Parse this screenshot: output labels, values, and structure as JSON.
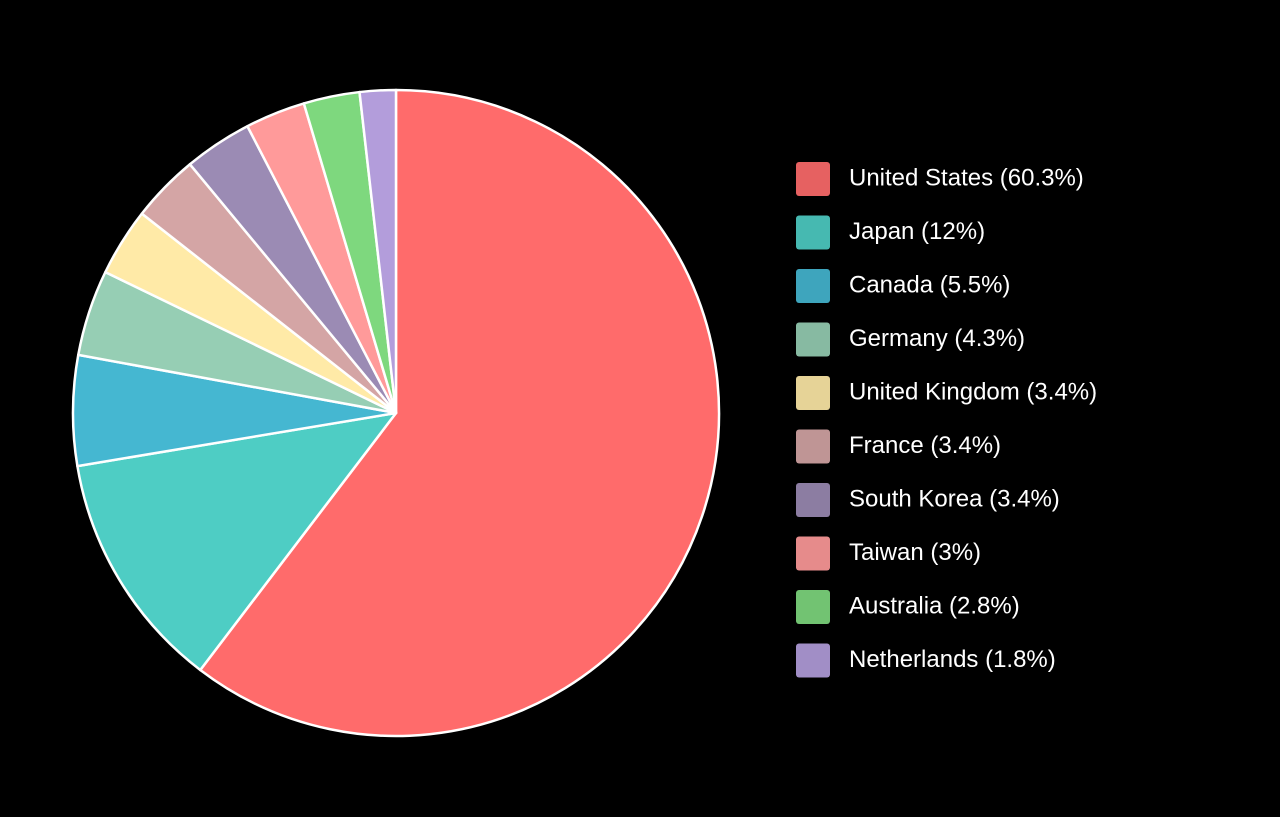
{
  "chart_data": {
    "type": "pie",
    "categories": [
      "United States (60.3%)",
      "Japan (12%)",
      "Canada (5.5%)",
      "Germany (4.3%)",
      "United Kingdom (3.4%)",
      "France (3.4%)",
      "South Korea (3.4%)",
      "Taiwan (3%)",
      "Australia (2.8%)",
      "Netherlands (1.8%)"
    ],
    "values": [
      60.3,
      12,
      5.5,
      4.3,
      3.4,
      3.4,
      3.4,
      3,
      2.8,
      1.8
    ],
    "colors": [
      "#ff6b6b",
      "#4ecdc4",
      "#45b7d1",
      "#96ceb4",
      "#ffeaa7",
      "#d4a5a5",
      "#9b8bb4",
      "#ff9a9a",
      "#7ed87e",
      "#b39ddb"
    ],
    "legend": "right"
  }
}
